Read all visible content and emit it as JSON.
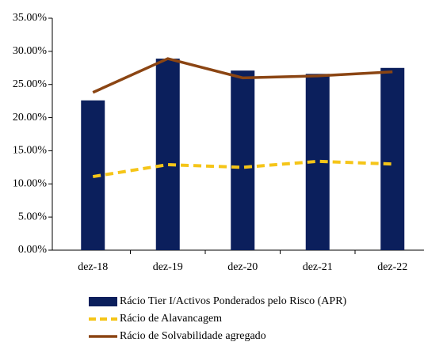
{
  "chart_data": {
    "type": "bar_line",
    "categories": [
      "dez-18",
      "dez-19",
      "dez-20",
      "dez-21",
      "dez-22"
    ],
    "series": [
      {
        "name": "Rácio Tier I/Activos Ponderados pelo Risco (APR)",
        "kind": "bar",
        "color": "#0b1f5c",
        "values": [
          22.6,
          28.9,
          27.1,
          26.6,
          27.5
        ]
      },
      {
        "name": "Rácio de Alavancagem",
        "kind": "line",
        "dashed": true,
        "color": "#f5c518",
        "values": [
          11.1,
          12.9,
          12.5,
          13.4,
          13.0
        ]
      },
      {
        "name": "Rácio de Solvabilidade agregado",
        "kind": "line",
        "dashed": false,
        "color": "#8b4513",
        "values": [
          23.8,
          28.9,
          26.0,
          26.3,
          26.9
        ]
      }
    ],
    "ylim": [
      0,
      35
    ],
    "yticks": [
      {
        "value": 0,
        "label": "0.00%"
      },
      {
        "value": 5,
        "label": "5.00%"
      },
      {
        "value": 10,
        "label": "10.00%"
      },
      {
        "value": 15,
        "label": "15.00%"
      },
      {
        "value": 20,
        "label": "20.00%"
      },
      {
        "value": 25,
        "label": "25.00%"
      },
      {
        "value": 30,
        "label": "30.00%"
      },
      {
        "value": 35,
        "label": "35.00%"
      }
    ]
  }
}
